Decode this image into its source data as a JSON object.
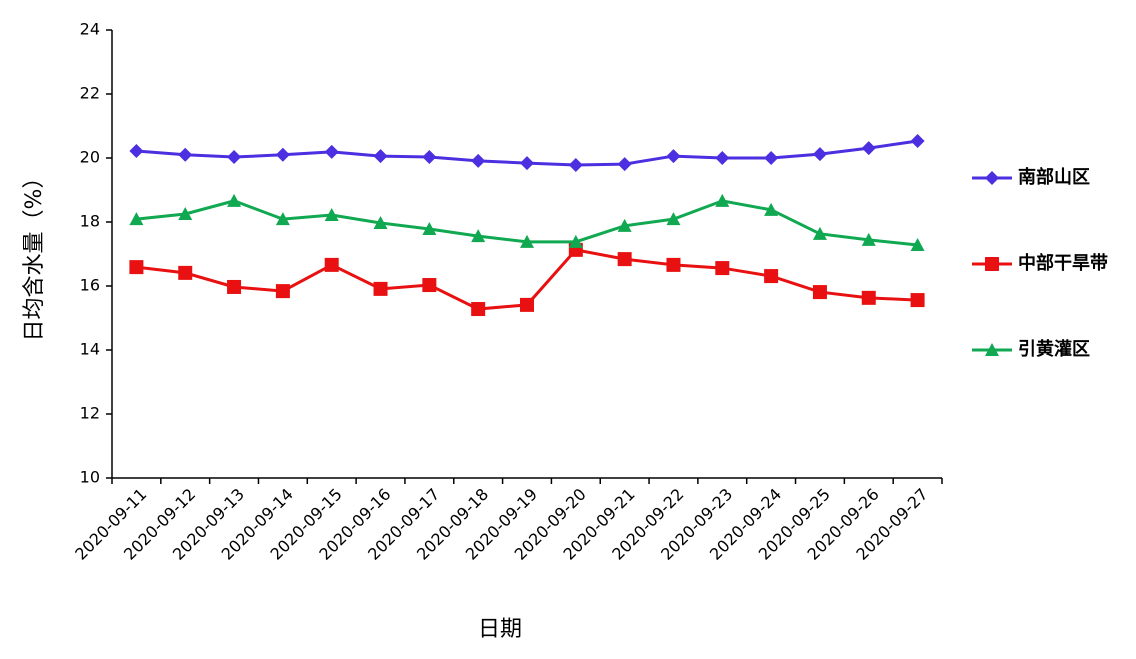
{
  "chart_data": {
    "type": "line",
    "x_label": "日期",
    "y_label": "日均含水量（%）",
    "categories": [
      "2020-09-11",
      "2020-09-12",
      "2020-09-13",
      "2020-09-14",
      "2020-09-15",
      "2020-09-16",
      "2020-09-17",
      "2020-09-18",
      "2020-09-19",
      "2020-09-20",
      "2020-09-21",
      "2020-09-22",
      "2020-09-23",
      "2020-09-24",
      "2020-09-25",
      "2020-09-26",
      "2020-09-27"
    ],
    "series": [
      {
        "name": "南部山区",
        "color": "#4b2fe0",
        "marker": "diamond",
        "values": [
          20.22,
          20.1,
          20.03,
          20.1,
          20.19,
          20.06,
          20.03,
          19.91,
          19.84,
          19.78,
          19.81,
          20.06,
          20.0,
          20.0,
          20.12,
          20.31,
          20.53
        ]
      },
      {
        "name": "中部干旱带",
        "color": "#e81010",
        "marker": "square",
        "values": [
          16.59,
          16.41,
          15.97,
          15.84,
          16.66,
          15.91,
          16.03,
          15.28,
          15.41,
          17.13,
          16.84,
          16.66,
          16.56,
          16.31,
          15.81,
          15.63,
          15.56
        ]
      },
      {
        "name": "引黄灌区",
        "color": "#10a850",
        "marker": "triangle",
        "values": [
          18.09,
          18.25,
          18.66,
          18.09,
          18.22,
          17.97,
          17.78,
          17.56,
          17.38,
          17.38,
          17.88,
          18.09,
          18.66,
          18.38,
          17.63,
          17.44,
          17.28
        ]
      }
    ],
    "ylim": [
      10,
      24
    ],
    "yticks": [
      10,
      12,
      14,
      16,
      18,
      20,
      22,
      24
    ],
    "legend": "right"
  }
}
